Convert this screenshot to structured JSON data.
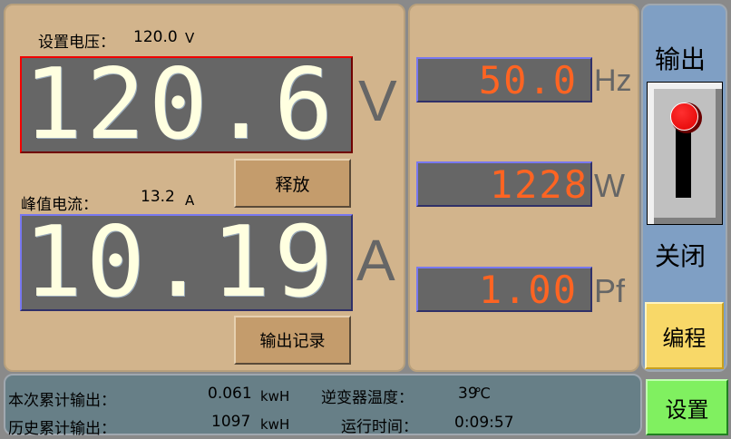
{
  "voltage": {
    "set_label": "设置电压：",
    "set_value": "120.0",
    "set_unit": "V",
    "reading": "120.6",
    "unit": "V"
  },
  "current": {
    "peak_label": "峰值电流：",
    "peak_value": "13.2",
    "peak_unit": "A",
    "reading": "10.19",
    "unit": "A"
  },
  "buttons": {
    "release": "释放",
    "output_record": "输出记录",
    "program": "编程",
    "settings": "设置"
  },
  "meters": [
    {
      "reading": "50.0",
      "unit": "Hz"
    },
    {
      "reading": "1228",
      "unit": "W"
    },
    {
      "reading": "1.00",
      "unit": "Pf"
    }
  ],
  "output_switch": {
    "title": "输出",
    "state": "关闭",
    "icon": "toggle-lever-icon"
  },
  "status": {
    "session_label": "本次累计输出：",
    "session_value": "0.061",
    "session_unit": "kwH",
    "history_label": "历史累计输出：",
    "history_value": "1097",
    "history_unit": "kwH",
    "temp_label": "逆变器温度：",
    "temp_value": "39",
    "temp_unit": "℃",
    "runtime_label": "运行时间：",
    "runtime_value": "0:09:57"
  },
  "colors": {
    "big_digit": "#ffffe0",
    "small_digit": "#ff6422",
    "display_bg": "#666666",
    "voltage_border": "#e00000",
    "panel": "#d2b48c",
    "side_panel": "#7f9fc4",
    "status_bar": "#677f87",
    "settings_button": "#80f060",
    "program_button": "#f8d868"
  }
}
